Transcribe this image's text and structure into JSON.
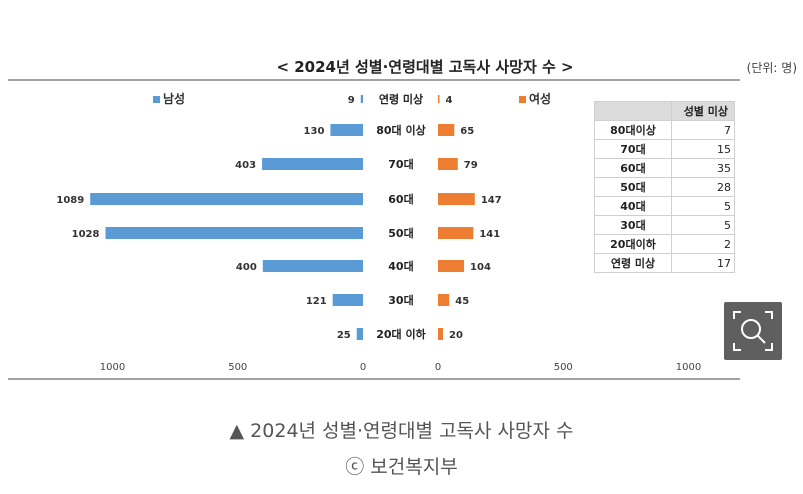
{
  "chart_data": {
    "type": "bar",
    "title": "< 2024년 성별·연령대별 고독사 사망자 수 >",
    "unit_label": "(단위: 명)",
    "categories": [
      "연령 미상",
      "80대 이상",
      "70대",
      "60대",
      "50대",
      "40대",
      "30대",
      "20대 이하"
    ],
    "series": [
      {
        "name": "남성",
        "color": "#5b9bd5",
        "values": [
          9,
          130,
          403,
          1089,
          1028,
          400,
          121,
          25
        ]
      },
      {
        "name": "여성",
        "color": "#ed7d31",
        "values": [
          4,
          65,
          79,
          147,
          141,
          104,
          45,
          20
        ]
      }
    ],
    "x_ticks_left": [
      "1000",
      "500",
      "0"
    ],
    "x_ticks_right": [
      "0",
      "500",
      "1000"
    ],
    "xlim": [
      0,
      1100
    ],
    "table": {
      "header_blank": "",
      "header": "성별 미상",
      "rows": [
        {
          "label": "80대이상",
          "value": "7"
        },
        {
          "label": "70대",
          "value": "15"
        },
        {
          "label": "60대",
          "value": "35"
        },
        {
          "label": "50대",
          "value": "28"
        },
        {
          "label": "40대",
          "value": "5"
        },
        {
          "label": "30대",
          "value": "5"
        },
        {
          "label": "20대이하",
          "value": "2"
        },
        {
          "label": "연령 미상",
          "value": "17"
        }
      ]
    }
  },
  "caption": {
    "line1": "▲ 2024년 성별·연령대별 고독사 사망자 수",
    "line2": "ⓒ 보건복지부"
  },
  "zoom_icon": "zoom-search-icon"
}
